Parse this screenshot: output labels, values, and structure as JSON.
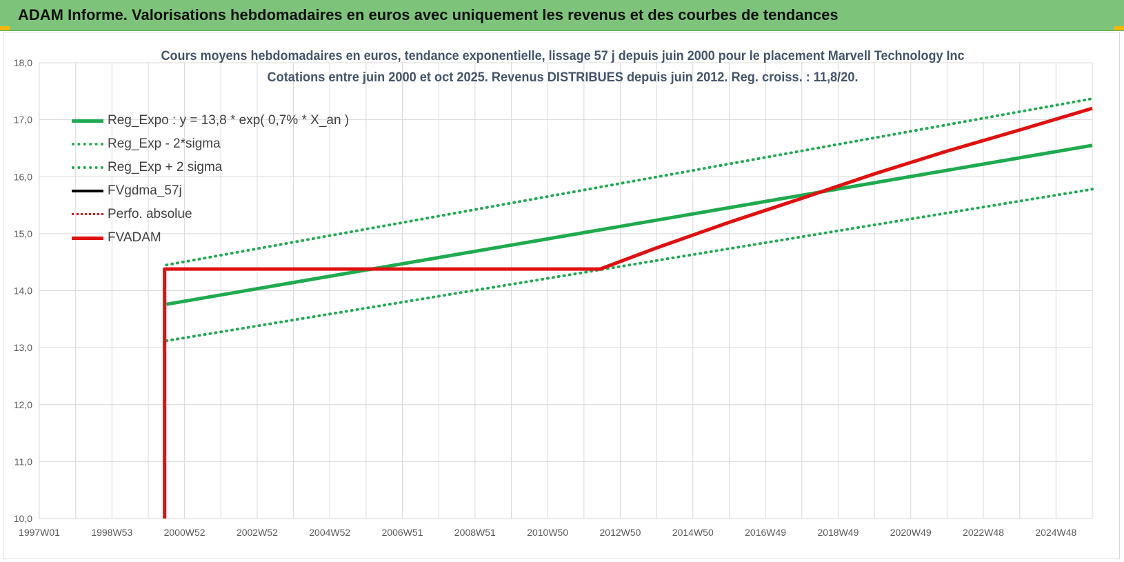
{
  "header": {
    "title": "ADAM Informe. Valorisations hebdomadaires en euros avec uniquement les revenus et des courbes de tendances"
  },
  "colors": {
    "banner": "#7dc47a",
    "reg_green": "#1faa4f",
    "fvadam_red": "#e01010",
    "grid": "#d9d9d9",
    "axis_text": "#595959",
    "title_text": "#44546a"
  },
  "chart_data": {
    "type": "line",
    "title": "Cours moyens hebdomadaires en euros, tendance exponentielle, lissage 57 j depuis juin 2000 pour le placement Marvell Technology Inc",
    "subtitle": "Cotations entre juin 2000 et oct 2025. Revenus DISTRIBUES depuis juin 2012. Reg. croiss. : 11,8/20.",
    "xlabel": "",
    "ylabel": "",
    "x_tick_labels": [
      "1997W01",
      "1998W53",
      "2000W52",
      "2002W52",
      "2004W52",
      "2006W51",
      "2008W51",
      "2010W50",
      "2012W50",
      "2014W50",
      "2016W49",
      "2018W49",
      "2020W49",
      "2022W48",
      "2024W48"
    ],
    "x_range": [
      1997.0,
      2026.0
    ],
    "ylim": [
      10.0,
      18.0
    ],
    "y_ticks": [
      "10,0",
      "11,0",
      "12,0",
      "13,0",
      "14,0",
      "15,0",
      "16,0",
      "17,0",
      "18,0"
    ],
    "grid": true,
    "legend_position": "top-left",
    "series": [
      {
        "name": "Reg_Expo : y = 13,8 * exp( 0,7% *  X_an )",
        "style": "solid-green",
        "points": [
          [
            2000.5,
            13.76
          ],
          [
            2026.0,
            16.55
          ]
        ]
      },
      {
        "name": "Reg_Exp - 2*sigma",
        "style": "dotted-green",
        "points": [
          [
            2000.5,
            13.12
          ],
          [
            2026.0,
            15.78
          ]
        ]
      },
      {
        "name": "Reg_Exp + 2 sigma",
        "style": "dotted-green",
        "points": [
          [
            2000.5,
            14.45
          ],
          [
            2026.0,
            17.37
          ]
        ]
      },
      {
        "name": "FVgdma_57j",
        "style": "solid-black",
        "points": []
      },
      {
        "name": "Perfo. absolue",
        "style": "dotted-red",
        "points": []
      },
      {
        "name": "FVADAM",
        "style": "solid-red",
        "points": [
          [
            2000.45,
            10.0
          ],
          [
            2000.45,
            14.38
          ],
          [
            2012.45,
            14.38
          ],
          [
            2014.0,
            14.75
          ],
          [
            2016.0,
            15.2
          ],
          [
            2018.0,
            15.62
          ],
          [
            2020.0,
            16.05
          ],
          [
            2022.0,
            16.45
          ],
          [
            2024.0,
            16.82
          ],
          [
            2026.0,
            17.2
          ]
        ]
      }
    ]
  }
}
